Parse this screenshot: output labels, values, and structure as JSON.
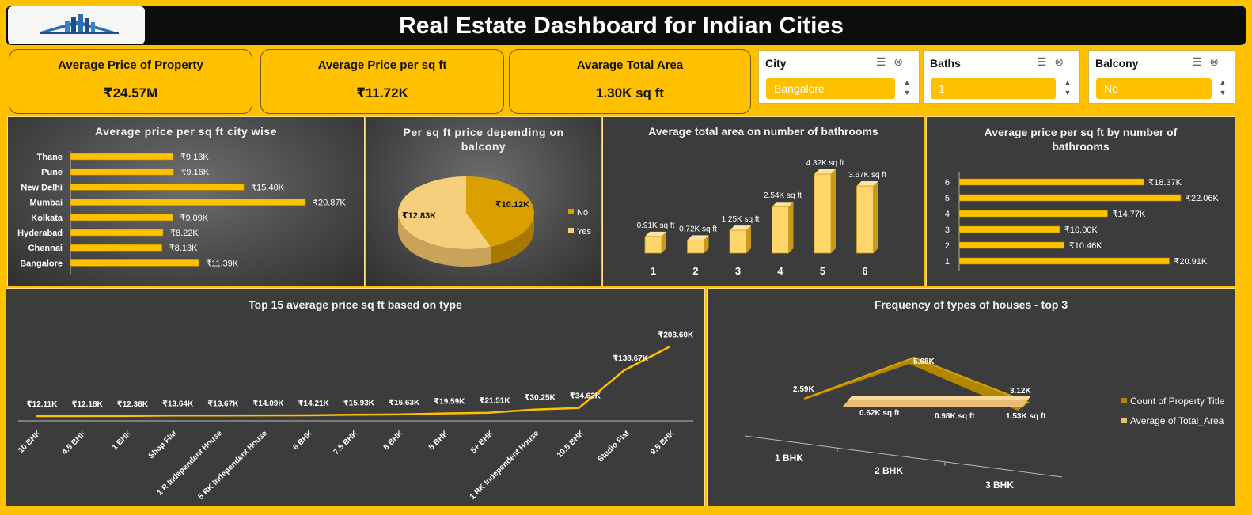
{
  "header": {
    "title": "Real Estate Dashboard for Indian Cities"
  },
  "kpis": [
    {
      "label": "Average Price of Property",
      "value": "₹24.57M"
    },
    {
      "label": "Average Price per sq ft",
      "value": "₹11.72K"
    },
    {
      "label": "Avarage Total Area",
      "value": "1.30K sq ft"
    }
  ],
  "slicers": [
    {
      "title": "City",
      "selected": "Bangalore"
    },
    {
      "title": "Baths",
      "selected": "1"
    },
    {
      "title": "Balcony",
      "selected": "No"
    }
  ],
  "colors": {
    "accent": "#ffc000",
    "bar": "#ffc000",
    "panel": "#3c3c3c",
    "pie_no": "#d9a000",
    "pie_yes": "#f5cf7c"
  },
  "chart_data": [
    {
      "type": "bar",
      "title": "Average price per sq ft city wise",
      "categories": [
        "Thane",
        "Pune",
        "New Delhi",
        "Mumbai",
        "Kolkata",
        "Hyderabad",
        "Chennai",
        "Bangalore"
      ],
      "values": [
        9.13,
        9.16,
        15.4,
        20.87,
        9.09,
        8.22,
        8.13,
        11.39
      ],
      "labels": [
        "₹9.13K",
        "₹9.16K",
        "₹15.40K",
        "₹20.87K",
        "₹9.09K",
        "₹8.22K",
        "₹8.13K",
        "₹11.39K"
      ],
      "orientation": "horizontal"
    },
    {
      "type": "pie",
      "title": "Per sq ft price depending on balcony",
      "categories": [
        "No",
        "Yes"
      ],
      "values": [
        10.12,
        12.83
      ],
      "labels": [
        "₹10.12K",
        "₹12.83K"
      ],
      "legend": [
        "No",
        "Yes"
      ],
      "legend_position": "right"
    },
    {
      "type": "bar",
      "title": "Average total area on number of bathrooms",
      "categories": [
        "1",
        "2",
        "3",
        "4",
        "5",
        "6"
      ],
      "values": [
        0.91,
        0.72,
        1.25,
        2.54,
        4.32,
        3.67
      ],
      "labels": [
        "0.91K sq ft",
        "0.72K sq ft",
        "1.25K sq ft",
        "2.54K sq ft",
        "4.32K sq ft",
        "3.67K sq ft"
      ]
    },
    {
      "type": "bar",
      "title": "Average price per sq ft by number of bathrooms",
      "categories": [
        "6",
        "5",
        "4",
        "3",
        "2",
        "1"
      ],
      "values": [
        18.37,
        22.06,
        14.77,
        10.0,
        10.46,
        20.91
      ],
      "labels": [
        "₹18.37K",
        "₹22.06K",
        "₹14.77K",
        "₹10.00K",
        "₹10.46K",
        "₹20.91K"
      ],
      "orientation": "horizontal"
    },
    {
      "type": "line",
      "title": "Top 15 average price sq ft based on type",
      "categories": [
        "10 BHK",
        "4.5 BHK",
        "1 BHK",
        "Shop Flat",
        "1 R Independent House",
        "5 RK Independent House",
        "6 BHK",
        "7.5 BHK",
        "8 BHK",
        "5 BHK",
        "5+ BHK",
        "1 RK Independent House",
        "10.5 BHK",
        "Studio Flat",
        "9.5 BHK"
      ],
      "values": [
        12.11,
        12.18,
        12.36,
        13.64,
        13.67,
        14.09,
        14.21,
        15.93,
        16.63,
        19.59,
        21.51,
        30.25,
        34.63,
        138.67,
        203.6
      ],
      "labels": [
        "₹12.11K",
        "₹12.18K",
        "₹12.36K",
        "₹13.64K",
        "₹13.67K",
        "₹14.09K",
        "₹14.21K",
        "₹15.93K",
        "₹16.63K",
        "₹19.59K",
        "₹21.51K",
        "₹30.25K",
        "₹34.63K",
        "₹138.67K",
        "₹203.60K"
      ]
    },
    {
      "type": "area",
      "title": "Frequency of types of houses - top 3",
      "categories": [
        "1 BHK",
        "2 BHK",
        "3 BHK"
      ],
      "series": [
        {
          "name": "Count of Property Title",
          "values": [
            2.59,
            5.68,
            3.12
          ],
          "labels": [
            "2.59K",
            "5.68K",
            "3.12K"
          ]
        },
        {
          "name": "Average of Total_Area",
          "values": [
            0.62,
            0.98,
            1.53
          ],
          "labels": [
            "0.62K sq ft",
            "0.98K sq ft",
            "1.53K sq ft"
          ]
        }
      ],
      "legend_position": "right"
    }
  ]
}
